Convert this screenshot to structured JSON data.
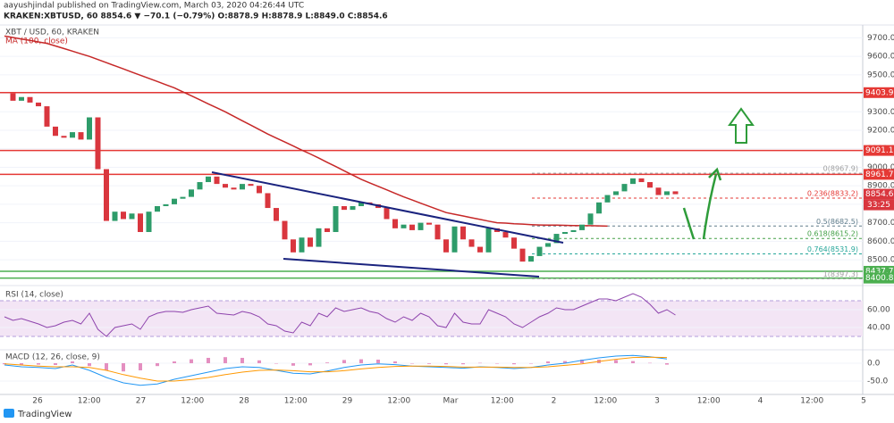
{
  "header": {
    "published": "aayushjindal published on TradingView.com, March 03, 2020 04:26:44 UTC",
    "symbol_line": "KRAKEN:XBTUSD, 60  8854.6  ▼ −70.1 (−0.79%)  O:8878.9  H:8878.9  L:8849.0  C:8854.6"
  },
  "footer": {
    "logo": "TradingView"
  },
  "chart_data": [
    {
      "type": "candlestick",
      "title": "XBT / USD, 60, KRAKEN",
      "up_color": "#2e9c6a",
      "down_color": "#d9363e",
      "close": [
        9400,
        9360,
        9380,
        9350,
        9330,
        9220,
        9170,
        9160,
        9190,
        9150,
        9270,
        8990,
        8710,
        8760,
        8720,
        8750,
        8650,
        8760,
        8790,
        8800,
        8830,
        8840,
        8880,
        8920,
        8950,
        8910,
        8890,
        8880,
        8910,
        8900,
        8860,
        8780,
        8710,
        8610,
        8540,
        8620,
        8570,
        8670,
        8650,
        8790,
        8770,
        8790,
        8810,
        8800,
        8780,
        8720,
        8670,
        8690,
        8660,
        8700,
        8690,
        8610,
        8540,
        8680,
        8610,
        8570,
        8540,
        8670,
        8650,
        8620,
        8560,
        8490,
        8520,
        8570,
        8590,
        8640,
        8650,
        8660,
        8690,
        8750,
        8810,
        8850,
        8870,
        8910,
        8940,
        8920,
        8890,
        8850,
        8870,
        8854.6
      ],
      "series": [
        {
          "name": "MA (100, close)",
          "color": "#c62828",
          "values": [
            9710,
            9702,
            9694,
            9686,
            9678,
            9670,
            9656,
            9642,
            9628,
            9614,
            9600,
            9583,
            9566,
            9549,
            9532,
            9515,
            9498,
            9481,
            9464,
            9447,
            9430,
            9408,
            9387,
            9365,
            9343,
            9322,
            9300,
            9276,
            9252,
            9228,
            9204,
            9180,
            9158,
            9137,
            9115,
            9093,
            9072,
            9050,
            9027,
            9004,
            8981,
            8958,
            8935,
            8916,
            8897,
            8878,
            8859,
            8840,
            8823,
            8806,
            8789,
            8772,
            8755,
            8746,
            8737,
            8727,
            8718,
            8709,
            8700,
            8698,
            8695,
            8693,
            8690,
            8688,
            8687,
            8687,
            8686,
            8685,
            8684,
            8684,
            8683,
            8682,
            null,
            null,
            null,
            null,
            null,
            null,
            null,
            null
          ]
        }
      ],
      "ylim": [
        8370,
        9760
      ],
      "yticks": [
        {
          "value": 8500,
          "label": "8500.0"
        },
        {
          "value": 8600,
          "label": "8600.0"
        },
        {
          "value": 8700,
          "label": "8700.0"
        },
        {
          "value": 8800,
          "label": "8800.0"
        },
        {
          "value": 8900,
          "label": "8900.0"
        },
        {
          "value": 9000,
          "label": "9000.0"
        },
        {
          "value": 9100,
          "label": "9100.0"
        },
        {
          "value": 9200,
          "label": "9200.0"
        },
        {
          "value": 9300,
          "label": "9300.0"
        },
        {
          "value": 9400,
          "label": "9400.0"
        },
        {
          "value": 9500,
          "label": "9500.0"
        },
        {
          "value": 9600,
          "label": "9600.0"
        },
        {
          "value": 9700,
          "label": "9700.0"
        }
      ],
      "grid": true,
      "levels": [
        {
          "value": 9403.9,
          "color": "#e53935"
        },
        {
          "value": 9091.1,
          "color": "#e53935"
        },
        {
          "value": 8961.7,
          "color": "#e53935"
        },
        {
          "value": 8437.7,
          "color": "#4caf50"
        },
        {
          "value": 8400.8,
          "color": "#4caf50"
        }
      ],
      "fib_levels": [
        {
          "value": 8967.9,
          "label": "0(8967.9)",
          "color": "#9e9e9e"
        },
        {
          "value": 8833.2,
          "label": "0.236(8833.2)",
          "color": "#e53935"
        },
        {
          "value": 8682.5,
          "label": "0.5(8682.5)",
          "color": "#607d8b"
        },
        {
          "value": 8615.2,
          "label": "0.618(8615.2)",
          "color": "#43a047"
        },
        {
          "value": 8531.9,
          "label": "0.764(8531.9)",
          "color": "#26a69a"
        },
        {
          "value": 8397.3,
          "label": "1(8397.3)",
          "color": "#9e9e9e"
        }
      ],
      "countdown": "33:25"
    },
    {
      "type": "line",
      "title": "RSI (14, close)",
      "series": [
        {
          "name": "RSI",
          "color": "#8e44ad",
          "values": [
            52,
            48,
            50,
            47,
            44,
            40,
            42,
            46,
            48,
            44,
            56,
            38,
            30,
            40,
            42,
            44,
            38,
            52,
            56,
            58,
            58,
            57,
            60,
            62,
            64,
            56,
            55,
            54,
            58,
            56,
            52,
            44,
            42,
            36,
            34,
            46,
            42,
            56,
            52,
            62,
            58,
            60,
            62,
            58,
            56,
            50,
            46,
            52,
            48,
            56,
            52,
            42,
            40,
            56,
            46,
            44,
            44,
            60,
            56,
            52,
            44,
            40,
            46,
            52,
            56,
            62,
            60,
            60,
            64,
            68,
            72,
            72,
            70,
            74,
            78,
            74,
            66,
            56,
            60,
            54
          ]
        }
      ],
      "ylim": [
        17,
        85
      ],
      "yticks": [
        {
          "value": 40,
          "label": "40.00"
        },
        {
          "value": 60,
          "label": "60.00"
        }
      ],
      "bands": [
        30,
        70
      ]
    },
    {
      "type": "macd",
      "title": "MACD (12, 26, close, 9)",
      "macd": {
        "color": "#2196f3",
        "values": [
          -5,
          -10,
          -12,
          -15,
          -5,
          -20,
          -40,
          -55,
          -62,
          -58,
          -45,
          -35,
          -25,
          -15,
          -10,
          -12,
          -20,
          -28,
          -30,
          -22,
          -12,
          -5,
          -2,
          -4,
          -8,
          -10,
          -12,
          -14,
          -10,
          -12,
          -15,
          -12,
          -5,
          0,
          8,
          15,
          20,
          22,
          18,
          12
        ]
      },
      "signal": {
        "color": "#ff9800",
        "values": [
          -2,
          -5,
          -8,
          -10,
          -10,
          -12,
          -20,
          -32,
          -42,
          -50,
          -50,
          -46,
          -40,
          -32,
          -25,
          -20,
          -19,
          -21,
          -24,
          -24,
          -21,
          -16,
          -12,
          -9,
          -8,
          -8,
          -9,
          -11,
          -11,
          -11,
          -12,
          -12,
          -10,
          -6,
          -2,
          5,
          11,
          16,
          17,
          16
        ]
      },
      "histogram": {
        "color": "#e48fc0",
        "values": [
          -3,
          -5,
          -4,
          -5,
          5,
          -8,
          -20,
          -23,
          -20,
          -8,
          5,
          11,
          15,
          17,
          15,
          8,
          -1,
          -7,
          -6,
          2,
          9,
          11,
          10,
          5,
          0,
          -2,
          -3,
          -3,
          1,
          -1,
          -3,
          0,
          5,
          6,
          10,
          10,
          9,
          6,
          1,
          -4
        ]
      },
      "ylim": [
        -87.5,
        32.5
      ],
      "yticks": [
        {
          "value": 0,
          "label": "0.0"
        },
        {
          "value": -50,
          "label": "-50.0"
        }
      ],
      "x_labels": [
        "26",
        "12:00",
        "27",
        "12:00",
        "28",
        "12:00",
        "29",
        "12:00",
        "Mar",
        "12:00",
        "2",
        "12:00",
        "3",
        "12:00",
        "4",
        "12:00",
        "5"
      ]
    }
  ]
}
